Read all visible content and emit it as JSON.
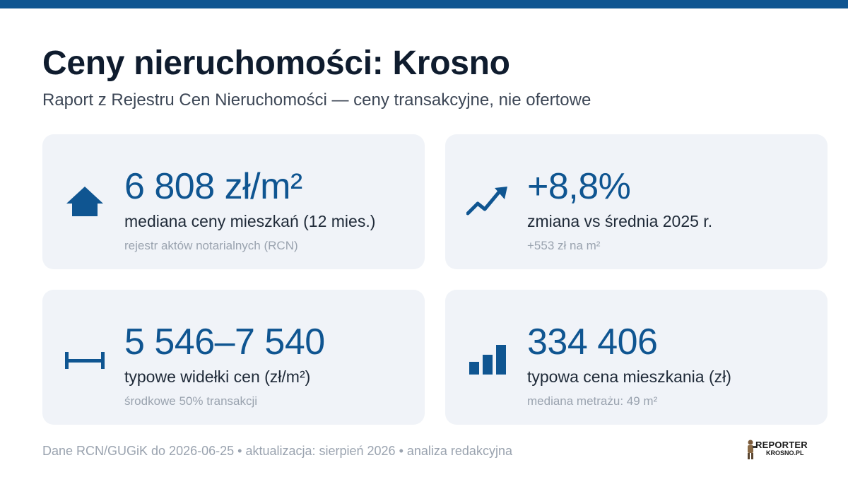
{
  "header": {
    "title": "Ceny nieruchomości: Krosno",
    "subtitle": "Raport z Rejestru Cen Nieruchomości — ceny transakcyjne, nie ofertowe"
  },
  "cards": [
    {
      "icon": "house-icon",
      "value": "6 808 zł/m²",
      "label": "mediana ceny mieszkań (12 mies.)",
      "note": "rejestr aktów notarialnych (RCN)"
    },
    {
      "icon": "trend-up-icon",
      "value": "+8,8%",
      "label": "zmiana vs średnia 2025 r.",
      "note": "+553 zł na m²"
    },
    {
      "icon": "range-icon",
      "value": "5 546–7 540",
      "label": "typowe widełki cen (zł/m²)",
      "note": "środkowe 50% transakcji"
    },
    {
      "icon": "bar-chart-icon",
      "value": "334 406",
      "label": "typowa cena mieszkania (zł)",
      "note": "mediana metrażu: 49 m²"
    }
  ],
  "footer": {
    "text": "Dane RCN/GUGiK do 2026-06-25 • aktualizacja: sierpień 2026 • analiza redakcyjna"
  },
  "logo": {
    "main": "REPORTER",
    "sub": "KROSNO.PL"
  },
  "colors": {
    "accent": "#0f5591",
    "card_bg": "#f0f3f8",
    "title": "#0f1c2e",
    "muted": "#9aa3af"
  }
}
